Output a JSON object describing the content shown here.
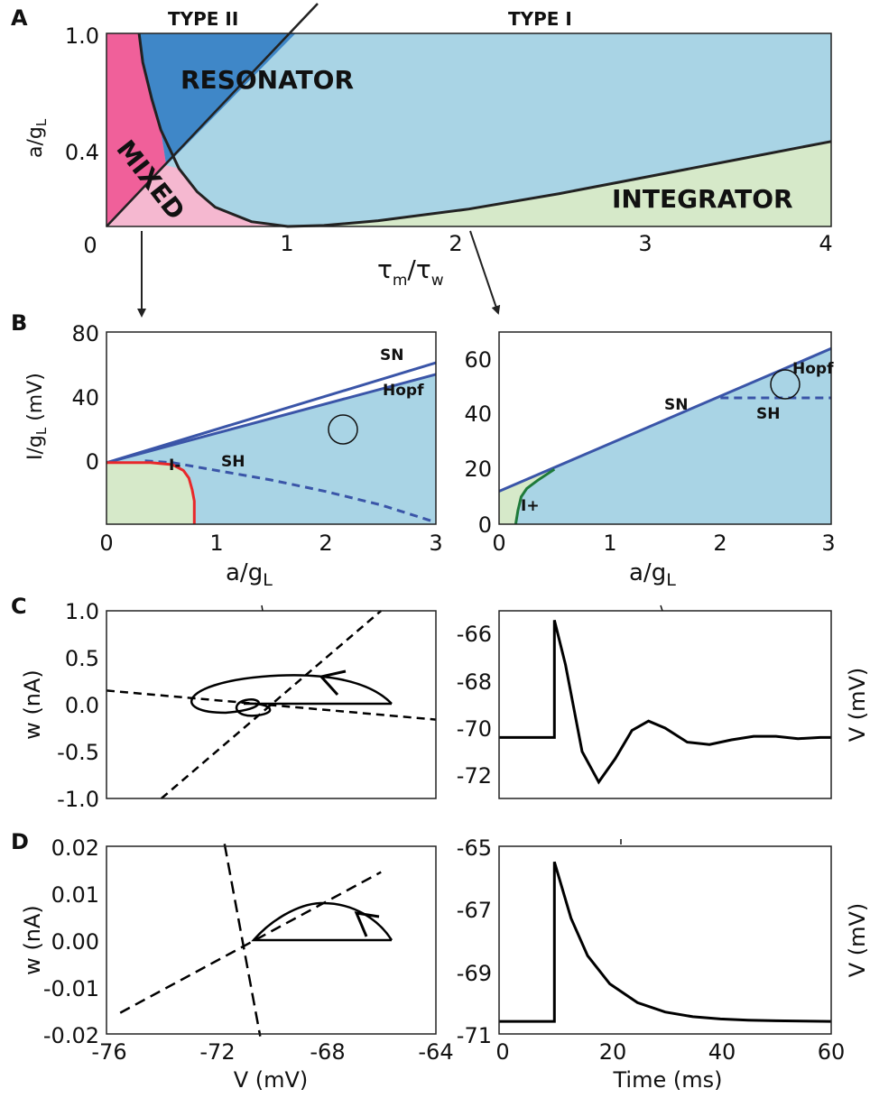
{
  "colors": {
    "pink_dark": "#f0609a",
    "pink_light": "#f5b8d0",
    "blue_dark": "#3f87c8",
    "blue_light": "#a9d4e5",
    "green_light": "#d6e9c9",
    "curve_blue": "#3a55a8",
    "curve_red": "#e8282b",
    "curve_green": "#1e7a3a",
    "black": "#000000"
  },
  "panels": {
    "A": {
      "letter": "A",
      "type2_label": "TYPE II",
      "type1_label": "TYPE I",
      "ylabel": "a/g",
      "ylabel_sub": "L",
      "xlabel_tau": "τ",
      "xlabel_sub_m": "m",
      "xlabel_slash": "/τ",
      "xlabel_sub_w": "w",
      "region_labels": {
        "resonator": "RESONATOR",
        "mixed": "MIXED",
        "integrator": "INTEGRATOR"
      },
      "xlim": [
        0,
        4
      ],
      "ylim": [
        0,
        1
      ],
      "xtick_values": [
        0,
        1,
        2,
        3,
        4
      ],
      "xtick_labels": [
        "0",
        "1",
        "2",
        "3",
        "4"
      ],
      "ytick_values": [
        1.0,
        0.4
      ],
      "ytick_labels": [
        "1.0",
        "0.4"
      ],
      "left_origin_label": "0"
    },
    "B_left": {
      "letter": "B",
      "ylabel": "I/g",
      "ylabel_sub": "L",
      "ylabel_unit": " (mV)",
      "xlabel": "a/g",
      "xlabel_sub": "L",
      "xlim": [
        0,
        3
      ],
      "ylim": [
        -20,
        80
      ],
      "xtick_values": [
        0,
        1,
        2,
        3
      ],
      "xtick_labels": [
        "0",
        "1",
        "2",
        "3"
      ],
      "ytick_values": [
        80,
        40,
        0
      ],
      "ytick_labels": [
        "80",
        "40",
        "0"
      ],
      "labels": {
        "sn": "SN",
        "hopf": "Hopf",
        "sh": "SH",
        "iminus": "I-"
      }
    },
    "B_right": {
      "xlabel": "a/g",
      "xlabel_sub": "L",
      "xlim": [
        0,
        3
      ],
      "ylim": [
        0,
        70
      ],
      "xtick_values": [
        0,
        1,
        2,
        3
      ],
      "xtick_labels": [
        "0",
        "1",
        "2",
        "3"
      ],
      "ytick_values": [
        60,
        40,
        20,
        0
      ],
      "ytick_labels": [
        "60",
        "40",
        "20",
        "0"
      ],
      "labels": {
        "sn": "SN",
        "hopf": "Hopf",
        "sh": "SH",
        "iplus": "I+"
      }
    },
    "C_left": {
      "letter": "C",
      "ylabel": "w (nA)",
      "ytick_values": [
        1.0,
        0.5,
        0.0,
        -0.5,
        -1.0
      ],
      "ytick_labels": [
        "1.0",
        "0.5",
        "0.0",
        "-0.5",
        "-1.0"
      ]
    },
    "C_right": {
      "ylabel": "V (mV)",
      "ytick_values": [
        -66,
        -68,
        -70,
        -72
      ],
      "ytick_labels": [
        "-66",
        "-68",
        "-70",
        "-72"
      ]
    },
    "D_left": {
      "letter": "D",
      "ylabel": "w (nA)",
      "xlabel": "V (mV)",
      "ytick_values": [
        0.02,
        0.01,
        0.0,
        -0.01,
        -0.02
      ],
      "ytick_labels": [
        "0.02",
        "0.01",
        "0.00",
        "-0.01",
        "-0.02"
      ],
      "xtick_values": [
        -76,
        -72,
        -68,
        -64
      ],
      "xtick_labels": [
        "-76",
        "-72",
        "-68",
        "-64"
      ]
    },
    "D_right": {
      "ylabel": "V (mV)",
      "xlabel": "Time (ms)",
      "ytick_values": [
        -65,
        -67,
        -69,
        -71
      ],
      "ytick_labels": [
        "-65",
        "-67",
        "-69",
        "-71"
      ],
      "xtick_values": [
        0,
        20,
        40,
        60
      ],
      "xtick_labels": [
        "0",
        "20",
        "40",
        "60"
      ]
    }
  },
  "chart_data": [
    {
      "panel": "A",
      "type": "area",
      "xlim": [
        0,
        4
      ],
      "ylim": [
        0,
        1
      ],
      "xlabel": "τm/τw",
      "ylabel": "a/gL",
      "boundaries": [
        {
          "name": "diagonal",
          "x": [
            0.0,
            1.2
          ],
          "y": [
            0.0,
            1.15
          ]
        },
        {
          "name": "lower",
          "x": [
            0.18,
            0.2,
            0.25,
            0.3,
            0.4,
            0.5,
            0.6,
            0.8,
            1.0,
            1.2,
            1.5,
            2.0,
            2.5,
            3.0,
            3.5,
            4.0
          ],
          "y": [
            1.0,
            0.85,
            0.66,
            0.5,
            0.3,
            0.18,
            0.1,
            0.025,
            0.0,
            0.005,
            0.03,
            0.09,
            0.17,
            0.26,
            0.35,
            0.44
          ]
        }
      ]
    },
    {
      "panel": "B_left",
      "type": "line",
      "xlim": [
        0,
        3
      ],
      "ylim": [
        -20,
        80
      ],
      "xlabel": "a/gL",
      "ylabel": "I/gL (mV)",
      "series": [
        {
          "name": "SN",
          "x": [
            0,
            3
          ],
          "y": [
            12,
            64
          ]
        },
        {
          "name": "Hopf",
          "x": [
            0,
            3
          ],
          "y": [
            12,
            58
          ]
        },
        {
          "name": "SH",
          "x": [
            0.35,
            0.6,
            1.0,
            1.5,
            2.0,
            2.5,
            3.0
          ],
          "y": [
            13,
            12,
            8,
            3,
            -3,
            -10,
            -19
          ]
        },
        {
          "name": "I-",
          "x": [
            0,
            0.4,
            0.6,
            0.7,
            0.75,
            0.78,
            0.8,
            0.8
          ],
          "y": [
            12,
            12,
            11,
            8,
            4,
            -2,
            -8,
            -20
          ]
        }
      ]
    },
    {
      "panel": "B_right",
      "type": "line",
      "xlim": [
        0,
        3
      ],
      "ylim": [
        0,
        70
      ],
      "xlabel": "a/gL",
      "series": [
        {
          "name": "SN",
          "x": [
            0,
            3
          ],
          "y": [
            12,
            64
          ]
        },
        {
          "name": "SH",
          "x": [
            2.0,
            3.0
          ],
          "y": [
            46,
            46
          ]
        },
        {
          "name": "I+",
          "x": [
            0.15,
            0.17,
            0.2,
            0.25,
            0.35,
            0.5
          ],
          "y": [
            0,
            5,
            10,
            13,
            16,
            20
          ]
        }
      ]
    },
    {
      "panel": "C_left",
      "type": "line",
      "xlim": [
        -76,
        -64
      ],
      "ylim": [
        -1.0,
        1.0
      ],
      "ylabel": "w (nA)",
      "series": [
        {
          "name": "V-nullcline",
          "x": [
            -76,
            -64
          ],
          "y": [
            0.15,
            -0.16
          ]
        },
        {
          "name": "w-nullcline",
          "x": [
            -74,
            -66
          ],
          "y": [
            -1.0,
            1.0
          ]
        }
      ]
    },
    {
      "panel": "C_right",
      "type": "line",
      "xlim": [
        0,
        60
      ],
      "ylim": [
        -73.2,
        -65.2
      ],
      "ylabel": "V (mV)",
      "series": [
        {
          "name": "V",
          "x": [
            0,
            10,
            10,
            12,
            15,
            18,
            21,
            24,
            27,
            30,
            34,
            38,
            42,
            46,
            50,
            54,
            58,
            60
          ],
          "y": [
            -70.6,
            -70.6,
            -65.6,
            -67.5,
            -71.2,
            -72.5,
            -71.5,
            -70.3,
            -69.9,
            -70.2,
            -70.8,
            -70.9,
            -70.7,
            -70.55,
            -70.55,
            -70.65,
            -70.6,
            -70.6
          ]
        }
      ]
    },
    {
      "panel": "D_left",
      "type": "line",
      "xlim": [
        -76,
        -64
      ],
      "ylim": [
        -0.02,
        0.02
      ],
      "xlabel": "V (mV)",
      "ylabel": "w (nA)",
      "series": [
        {
          "name": "V-nullcline",
          "x": [
            -75.5,
            -66
          ],
          "y": [
            -0.0155,
            0.0145
          ]
        },
        {
          "name": "w-nullcline",
          "x": [
            -71.7,
            -70.4
          ],
          "y": [
            0.0205,
            -0.0205
          ]
        }
      ]
    },
    {
      "panel": "D_right",
      "type": "line",
      "xlim": [
        0,
        60
      ],
      "ylim": [
        -71,
        -65
      ],
      "xlabel": "Time (ms)",
      "ylabel": "V (mV)",
      "series": [
        {
          "name": "V",
          "x": [
            0,
            10,
            10,
            13,
            16,
            20,
            25,
            30,
            35,
            40,
            45,
            50,
            55,
            60
          ],
          "y": [
            -70.6,
            -70.6,
            -65.5,
            -67.3,
            -68.5,
            -69.4,
            -70.0,
            -70.3,
            -70.45,
            -70.52,
            -70.56,
            -70.58,
            -70.59,
            -70.6
          ]
        }
      ]
    }
  ]
}
